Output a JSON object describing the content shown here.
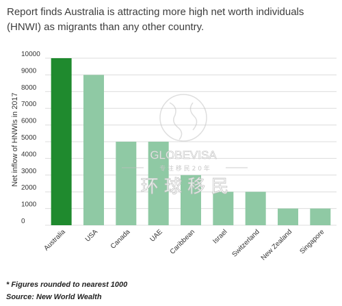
{
  "chart_data": {
    "type": "bar",
    "title": "Report finds Australia is attracting more high net worth individuals (HNWI) as migrants than any other country.",
    "ylabel": "Net inflow of HNWIs in 2017",
    "ylim": [
      0,
      10000
    ],
    "yticks": [
      "0",
      "1000",
      "2000",
      "3000",
      "4000",
      "5000",
      "6000",
      "7000",
      "8000",
      "9000",
      "10000"
    ],
    "categories": [
      "Australia",
      "USA",
      "Canada",
      "UAE",
      "Caribbean",
      "Israel",
      "Switzerland",
      "New Zealand",
      "Singapore"
    ],
    "values": [
      10000,
      9000,
      5000,
      5000,
      3000,
      2000,
      2000,
      1000,
      1000
    ],
    "colors": [
      "#1f8a2e",
      "#8fc9a4",
      "#8fc9a4",
      "#8fc9a4",
      "#8fc9a4",
      "#8fc9a4",
      "#8fc9a4",
      "#8fc9a4",
      "#8fc9a4"
    ],
    "grid": true
  },
  "footnotes": {
    "rounding": "* Figures rounded to nearest 1000",
    "source": "Source:  New World Wealth"
  },
  "watermark": {
    "brand": "GLOBEVISA",
    "tagline": "专 注 移 民 2 0 年",
    "chinese": "环 球 移 民"
  }
}
